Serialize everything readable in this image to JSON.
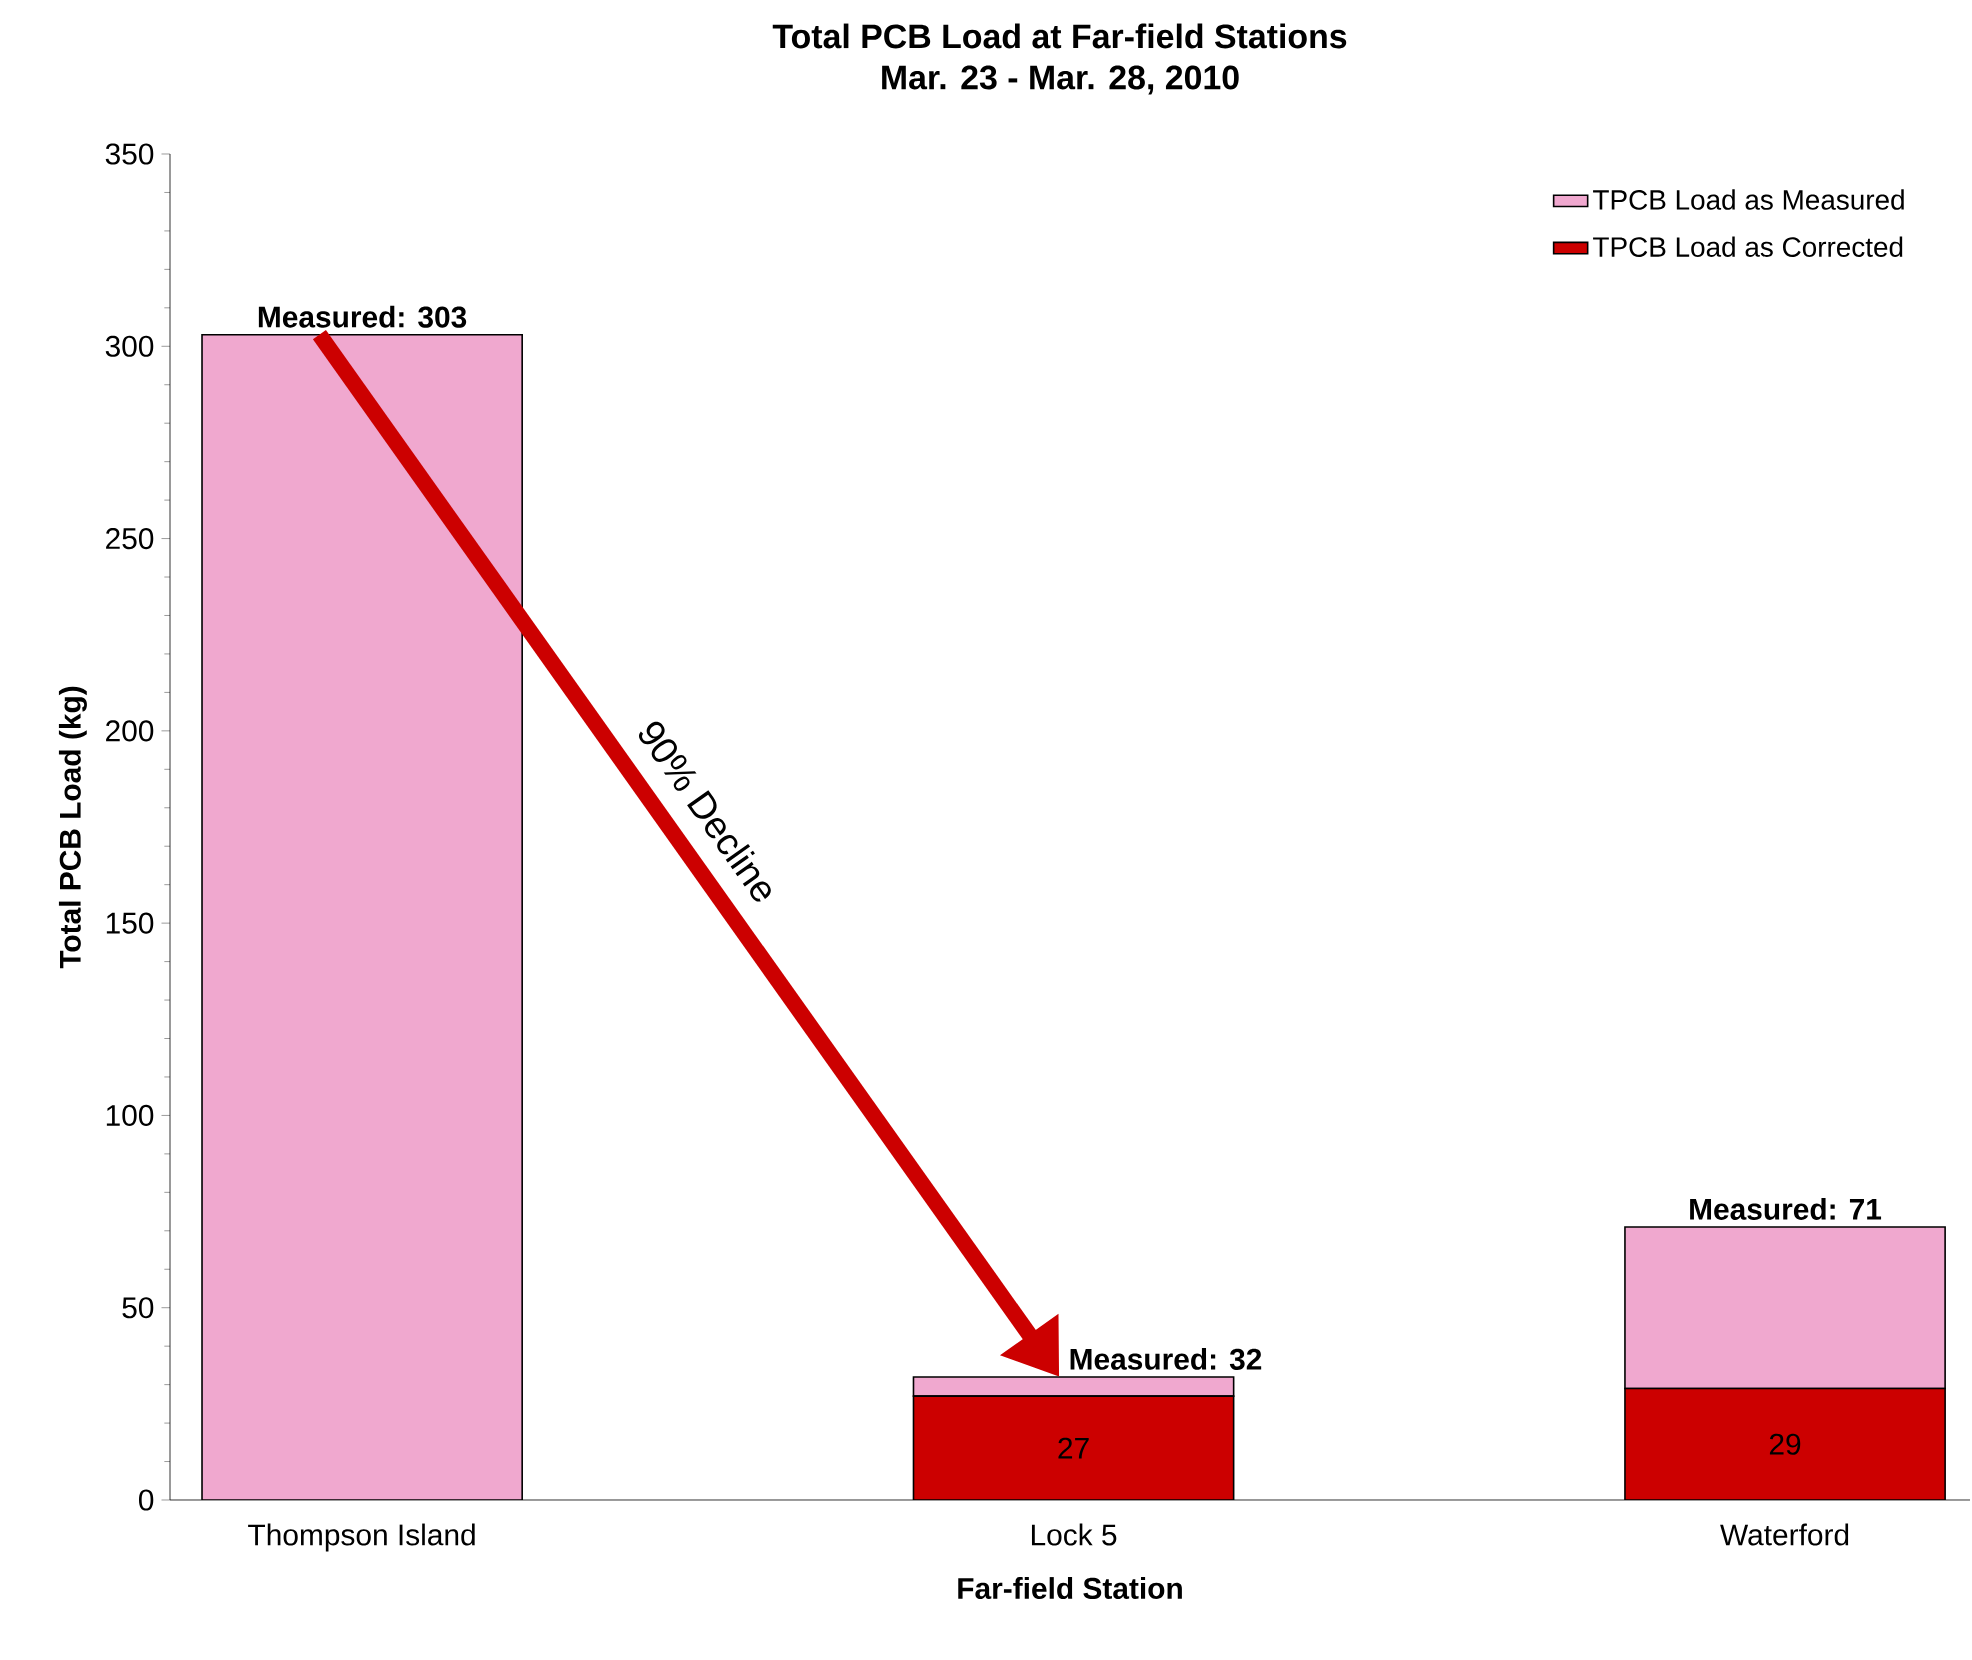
{
  "chart_data": {
    "type": "bar",
    "title": "Total PCB Load at Far-field Stations",
    "subtitle": "Mar. 23 - Mar. 28, 2010",
    "xlabel": "Far-field Station",
    "ylabel": "Total PCB Load (kg)",
    "categories": [
      "Thompson Island",
      "Lock 5",
      "Waterford"
    ],
    "stacked": true,
    "series": [
      {
        "name": "TPCB Load as Corrected",
        "color": "#cc0000",
        "values": [
          null,
          27,
          29
        ],
        "value_labels": [
          null,
          "27",
          "29"
        ]
      },
      {
        "name": "TPCB Load as Measured",
        "color": "#f0a8cf",
        "values": [
          303,
          5,
          42
        ]
      }
    ],
    "totals": [
      "Measured: 303",
      "Measured: 32",
      "Measured: 71"
    ],
    "ylim": [
      0,
      350
    ],
    "yticks": [
      0,
      50,
      100,
      150,
      200,
      250,
      300,
      350
    ],
    "grid": false,
    "legend": "top right",
    "annotations": [
      "90% Decline"
    ]
  }
}
